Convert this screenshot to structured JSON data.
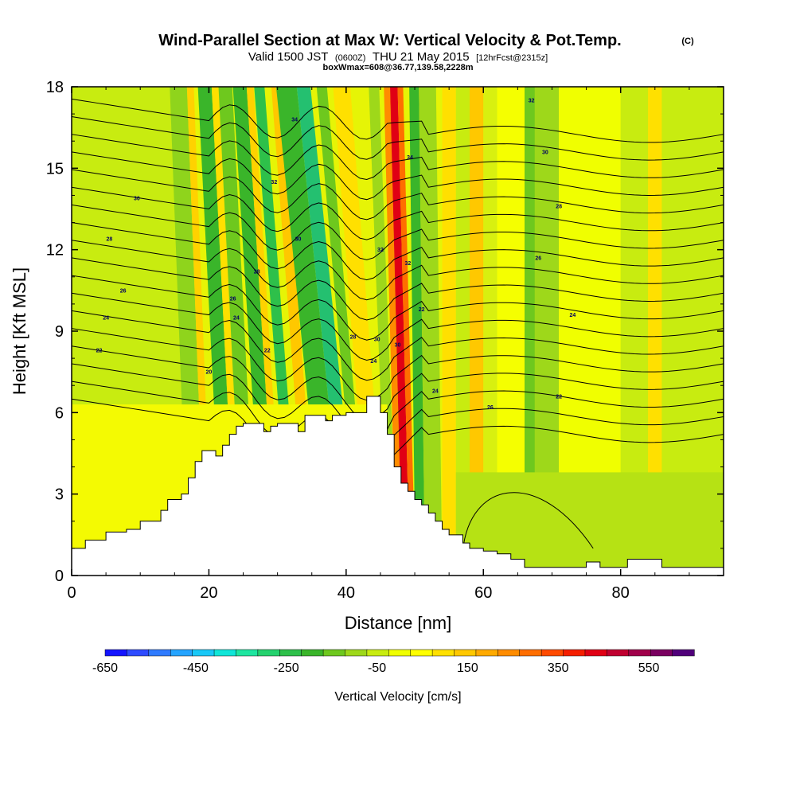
{
  "chart_data": {
    "type": "heatmap",
    "title": "Wind-Parallel Section at Max W: Vertical Velocity & Pot.Temp.",
    "title_mark": "(C)",
    "subtitle_prefix": "Valid 1500 JST",
    "subtitle_z": "(0600Z)",
    "subtitle_main": "THU 21 May 2015",
    "subtitle_fcst": "[12hrFcst@2315z]",
    "subtitle_box": "boxWmax=608@36.77,139.58,2228m",
    "xlabel": "Distance [nm]",
    "ylabel": "Height [Kft MSL]",
    "xlim": [
      0,
      95
    ],
    "ylim": [
      0,
      18
    ],
    "x_ticks": [
      "0",
      "20",
      "40",
      "60",
      "80"
    ],
    "y_ticks": [
      "0",
      "3",
      "6",
      "9",
      "12",
      "15",
      "18"
    ],
    "colorbar": {
      "title": "Vertical Velocity [cm/s]",
      "min": -650,
      "max": 650,
      "tick_labels": [
        "-650",
        "-450",
        "-250",
        "-50",
        "150",
        "350",
        "550"
      ],
      "colors": [
        "#1414ff",
        "#2e4bff",
        "#2f7bff",
        "#25a4ff",
        "#19c8f7",
        "#10e6d8",
        "#1ee6a0",
        "#24d26e",
        "#2ec04a",
        "#3ab52a",
        "#6ec81e",
        "#9ed81a",
        "#c8ec10",
        "#f0ff00",
        "#ffff00",
        "#ffe000",
        "#ffc800",
        "#ffaa00",
        "#ff8c00",
        "#ff6e00",
        "#ff4a00",
        "#f51e00",
        "#e00014",
        "#c00030",
        "#a0004a",
        "#7a0060",
        "#50007a"
      ]
    },
    "terrain_profile": [
      [
        0,
        1
      ],
      [
        2,
        1
      ],
      [
        2,
        1.3
      ],
      [
        5,
        1.3
      ],
      [
        5,
        1.6
      ],
      [
        8,
        1.6
      ],
      [
        8,
        1.7
      ],
      [
        10,
        1.7
      ],
      [
        10,
        2
      ],
      [
        13,
        2
      ],
      [
        13,
        2.4
      ],
      [
        14,
        2.4
      ],
      [
        14,
        2.8
      ],
      [
        16,
        2.8
      ],
      [
        16,
        3
      ],
      [
        17,
        3
      ],
      [
        17,
        3.6
      ],
      [
        18,
        3.6
      ],
      [
        18,
        4.2
      ],
      [
        19,
        4.2
      ],
      [
        19,
        4.6
      ],
      [
        21,
        4.6
      ],
      [
        21,
        4.4
      ],
      [
        22,
        4.4
      ],
      [
        22,
        4.8
      ],
      [
        23,
        4.8
      ],
      [
        23,
        5.2
      ],
      [
        24,
        5.2
      ],
      [
        24,
        5.5
      ],
      [
        25,
        5.5
      ],
      [
        25,
        5.6
      ],
      [
        28,
        5.6
      ],
      [
        28,
        5.3
      ],
      [
        29,
        5.3
      ],
      [
        29,
        5.5
      ],
      [
        30,
        5.5
      ],
      [
        30,
        5.6
      ],
      [
        33,
        5.6
      ],
      [
        33,
        5.3
      ],
      [
        34,
        5.3
      ],
      [
        34,
        5.9
      ],
      [
        37,
        5.9
      ],
      [
        37,
        5.7
      ],
      [
        38,
        5.7
      ],
      [
        38,
        5.9
      ],
      [
        40,
        5.9
      ],
      [
        40,
        6
      ],
      [
        43,
        6
      ],
      [
        43,
        6.6
      ],
      [
        45,
        6.6
      ],
      [
        45,
        6
      ],
      [
        46,
        6
      ],
      [
        46,
        5.2
      ],
      [
        47,
        5.2
      ],
      [
        47,
        4
      ],
      [
        48,
        4
      ],
      [
        48,
        3.4
      ],
      [
        49,
        3.4
      ],
      [
        49,
        3.1
      ],
      [
        50,
        3.1
      ],
      [
        50,
        2.8
      ],
      [
        51,
        2.8
      ],
      [
        51,
        2.6
      ],
      [
        52,
        2.6
      ],
      [
        52,
        2.3
      ],
      [
        53,
        2.3
      ],
      [
        53,
        2
      ],
      [
        54,
        2
      ],
      [
        54,
        1.7
      ],
      [
        55,
        1.7
      ],
      [
        55,
        1.5
      ],
      [
        57,
        1.5
      ],
      [
        57,
        1.2
      ],
      [
        58,
        1.2
      ],
      [
        58,
        1
      ],
      [
        60,
        1
      ],
      [
        60,
        0.9
      ],
      [
        62,
        0.9
      ],
      [
        62,
        0.8
      ],
      [
        64,
        0.8
      ],
      [
        64,
        0.6
      ],
      [
        66,
        0.6
      ],
      [
        66,
        0.3
      ],
      [
        75,
        0.3
      ],
      [
        75,
        0.5
      ],
      [
        77,
        0.5
      ],
      [
        77,
        0.3
      ],
      [
        81,
        0.3
      ],
      [
        81,
        0.6
      ],
      [
        86,
        0.6
      ],
      [
        86,
        0.3
      ],
      [
        95,
        0.3
      ]
    ],
    "theta_levels_C": [
      20,
      22,
      24,
      26,
      28,
      30,
      32,
      34
    ],
    "contour_labels": [
      {
        "text": "20",
        "x": 20,
        "y": 7.5
      },
      {
        "text": "22",
        "x": 4,
        "y": 8.3
      },
      {
        "text": "24",
        "x": 5,
        "y": 9.5
      },
      {
        "text": "26",
        "x": 7.5,
        "y": 10.5
      },
      {
        "text": "28",
        "x": 5.5,
        "y": 12.4
      },
      {
        "text": "30",
        "x": 9.5,
        "y": 13.9
      },
      {
        "text": "24",
        "x": 24,
        "y": 9.5
      },
      {
        "text": "26",
        "x": 23.5,
        "y": 10.2
      },
      {
        "text": "28",
        "x": 27,
        "y": 11.2
      },
      {
        "text": "30",
        "x": 33,
        "y": 12.4
      },
      {
        "text": "32",
        "x": 29.5,
        "y": 14.5
      },
      {
        "text": "34",
        "x": 32.5,
        "y": 16.8
      },
      {
        "text": "22",
        "x": 28.5,
        "y": 8.3
      },
      {
        "text": "28",
        "x": 41,
        "y": 8.8
      },
      {
        "text": "30",
        "x": 44.5,
        "y": 8.7
      },
      {
        "text": "24",
        "x": 44,
        "y": 7.9
      },
      {
        "text": "30",
        "x": 47.5,
        "y": 8.5
      },
      {
        "text": "32",
        "x": 45,
        "y": 12
      },
      {
        "text": "32",
        "x": 49,
        "y": 11.5
      },
      {
        "text": "34",
        "x": 49.3,
        "y": 15.4
      },
      {
        "text": "22",
        "x": 51,
        "y": 9.8
      },
      {
        "text": "24",
        "x": 53,
        "y": 6.8
      },
      {
        "text": "26",
        "x": 61,
        "y": 6.2
      },
      {
        "text": "22",
        "x": 71,
        "y": 6.6
      },
      {
        "text": "24",
        "x": 73,
        "y": 9.6
      },
      {
        "text": "26",
        "x": 68,
        "y": 11.7
      },
      {
        "text": "28",
        "x": 71,
        "y": 13.6
      },
      {
        "text": "30",
        "x": 69,
        "y": 15.6
      },
      {
        "text": "32",
        "x": 67,
        "y": 17.5
      }
    ]
  }
}
